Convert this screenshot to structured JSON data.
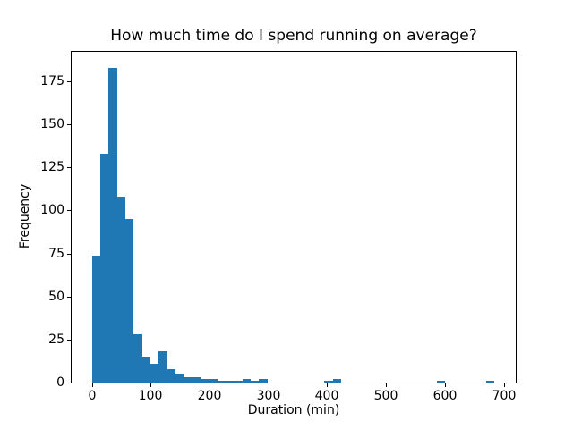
{
  "figure": {
    "background_color": "#ffffff",
    "spine_color": "#000000",
    "text_color": "#000000"
  },
  "chart_data": {
    "type": "bar",
    "subtype": "histogram",
    "title": "How much time do I spend running on average?",
    "xlabel": "Duration (min)",
    "ylabel": "Frequency",
    "xlim": [
      -34.3,
      720.3
    ],
    "ylim": [
      0,
      192.15
    ],
    "xticks": [
      0,
      100,
      200,
      300,
      400,
      500,
      600,
      700
    ],
    "yticks": [
      0,
      25,
      50,
      75,
      100,
      125,
      150,
      175
    ],
    "grid": false,
    "legend": false,
    "bar_color": "#1f77b4",
    "bin_width": 14.2,
    "bars": [
      {
        "x0": 0.0,
        "x1": 14.2,
        "count": 74
      },
      {
        "x0": 14.2,
        "x1": 28.4,
        "count": 133
      },
      {
        "x0": 28.4,
        "x1": 42.6,
        "count": 183
      },
      {
        "x0": 42.6,
        "x1": 56.8,
        "count": 108
      },
      {
        "x0": 56.8,
        "x1": 71.0,
        "count": 95
      },
      {
        "x0": 71.0,
        "x1": 85.2,
        "count": 28
      },
      {
        "x0": 85.2,
        "x1": 99.4,
        "count": 15
      },
      {
        "x0": 99.4,
        "x1": 113.6,
        "count": 11
      },
      {
        "x0": 113.6,
        "x1": 127.8,
        "count": 18
      },
      {
        "x0": 127.8,
        "x1": 142.0,
        "count": 8
      },
      {
        "x0": 142.0,
        "x1": 156.2,
        "count": 5
      },
      {
        "x0": 156.2,
        "x1": 170.4,
        "count": 3
      },
      {
        "x0": 170.4,
        "x1": 184.6,
        "count": 3
      },
      {
        "x0": 184.6,
        "x1": 198.8,
        "count": 2
      },
      {
        "x0": 198.8,
        "x1": 213.0,
        "count": 2
      },
      {
        "x0": 213.0,
        "x1": 227.2,
        "count": 1
      },
      {
        "x0": 227.2,
        "x1": 241.4,
        "count": 1
      },
      {
        "x0": 241.4,
        "x1": 255.6,
        "count": 1
      },
      {
        "x0": 255.6,
        "x1": 269.8,
        "count": 2
      },
      {
        "x0": 269.8,
        "x1": 284.0,
        "count": 1
      },
      {
        "x0": 284.0,
        "x1": 298.2,
        "count": 2
      },
      {
        "x0": 395.0,
        "x1": 409.2,
        "count": 1
      },
      {
        "x0": 409.2,
        "x1": 423.4,
        "count": 2
      },
      {
        "x0": 585.8,
        "x1": 600.0,
        "count": 1
      },
      {
        "x0": 669.8,
        "x1": 684.0,
        "count": 1
      }
    ]
  }
}
